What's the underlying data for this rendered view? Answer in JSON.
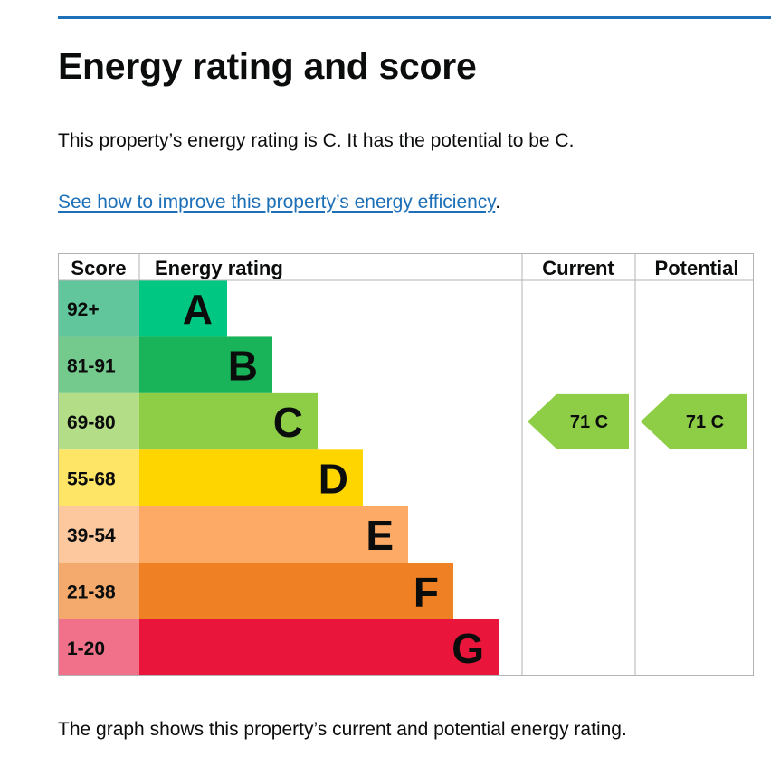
{
  "title": "Energy rating and score",
  "intro": "This property’s energy rating is C. It has the potential to be C.",
  "link": {
    "text": "See how to improve this property’s energy efficiency",
    "trailing": "."
  },
  "footer": "The graph shows this property’s current and potential energy rating.",
  "colors": {
    "rule": "#1d70b8",
    "link": "#1d70b8",
    "grid": "#b1b4b6",
    "text": "#0b0c0c"
  },
  "chart_data": {
    "type": "bar",
    "headers": {
      "score": "Score",
      "rating": "Energy rating",
      "current": "Current",
      "potential": "Potential"
    },
    "bands": [
      {
        "band": "A",
        "score": "92+",
        "bar_color": "#00c781",
        "score_color": "#62c69c"
      },
      {
        "band": "B",
        "score": "81-91",
        "bar_color": "#19b459",
        "score_color": "#74c98c"
      },
      {
        "band": "C",
        "score": "69-80",
        "bar_color": "#8dce46",
        "score_color": "#b4dd87"
      },
      {
        "band": "D",
        "score": "55-68",
        "bar_color": "#ffd500",
        "score_color": "#ffe566"
      },
      {
        "band": "E",
        "score": "39-54",
        "bar_color": "#fcaa65",
        "score_color": "#fdc89d"
      },
      {
        "band": "F",
        "score": "21-38",
        "bar_color": "#ef8023",
        "score_color": "#f4aa6d"
      },
      {
        "band": "G",
        "score": "1-20",
        "bar_color": "#e9153b",
        "score_color": "#f07189"
      }
    ],
    "current": {
      "score": 71,
      "band": "C",
      "label": "71 C",
      "color": "#8dce46"
    },
    "potential": {
      "score": 71,
      "band": "C",
      "label": "71 C",
      "color": "#8dce46"
    }
  }
}
